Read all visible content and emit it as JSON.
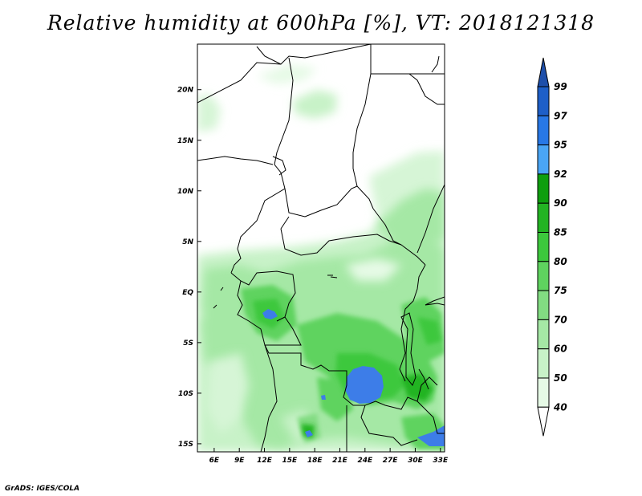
{
  "title": "Relative humidity at 600hPa [%], VT: 2018121318",
  "credit": "GrADS: IGES/COLA",
  "map": {
    "lat_labels": [
      "20N",
      "15N",
      "10N",
      "5N",
      "EQ",
      "5S",
      "10S",
      "15S"
    ],
    "lat_values": [
      20,
      15,
      10,
      5,
      0,
      -5,
      -10,
      -15
    ],
    "lon_labels": [
      "6E",
      "9E",
      "12E",
      "15E",
      "18E",
      "21E",
      "24E",
      "27E",
      "30E",
      "33E"
    ],
    "lon_values": [
      6,
      9,
      12,
      15,
      18,
      21,
      24,
      27,
      30,
      33
    ],
    "lon_range": [
      4,
      33.5
    ],
    "lat_range": [
      -15.8,
      24.5
    ]
  },
  "colorbar": {
    "levels": [
      "40",
      "50",
      "60",
      "70",
      "75",
      "80",
      "85",
      "90",
      "92",
      "95",
      "97",
      "99"
    ],
    "colors": [
      "#ffffff",
      "#e6fae6",
      "#c8f2c8",
      "#a5e8a5",
      "#82dc82",
      "#5fd35f",
      "#3cc83c",
      "#23b423",
      "#0e9e0e",
      "#4aa5f5",
      "#2878e6",
      "#1e5fc8",
      "#1e4faa"
    ]
  }
}
